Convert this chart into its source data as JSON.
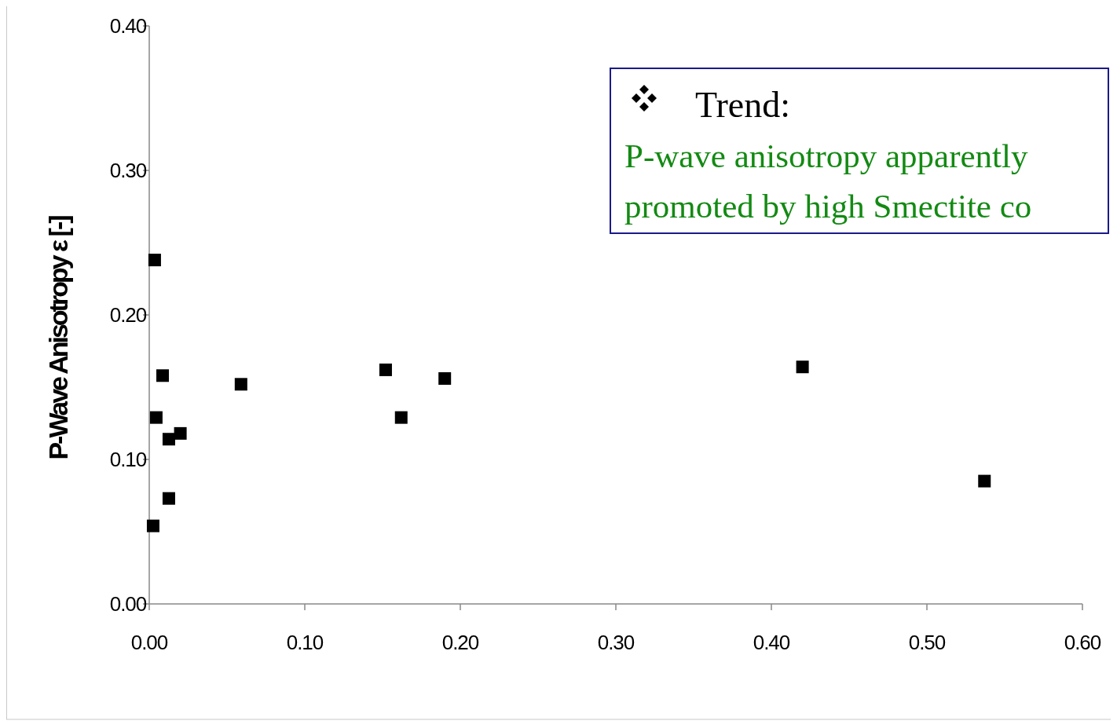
{
  "chart_data": {
    "type": "scatter",
    "ylabel": "P-Wave Anisotropy ε [-]",
    "annotations": [
      "Trend:",
      "P-wave anisotropy apparently",
      "promoted by high Smectite co"
    ],
    "xlim": [
      0,
      0.6
    ],
    "xticks": [
      {
        "value": 0,
        "label": "0.00"
      },
      {
        "value": 0.1,
        "label": "0.10"
      },
      {
        "value": 0.2,
        "label": "0.20"
      },
      {
        "value": 0.3,
        "label": "0.30"
      },
      {
        "value": 0.4,
        "label": "0.40"
      },
      {
        "value": 0.5,
        "label": "0.50"
      },
      {
        "value": 0.6,
        "label": "0.60"
      }
    ],
    "ylim": [
      0,
      0.4
    ],
    "yticks": [
      {
        "value": 0,
        "label": "0.00"
      },
      {
        "value": 0.1,
        "label": "0.10"
      },
      {
        "value": 0.2,
        "label": "0.20"
      },
      {
        "value": 0.3,
        "label": "0.30"
      },
      {
        "value": 0.4,
        "label": "0.40"
      }
    ],
    "marker": "square",
    "grid": false,
    "series": [
      {
        "color": "#000000",
        "x": [
          0.0035,
          0.0086,
          0.0045,
          0.02,
          0.0126,
          0.0126,
          0.0025,
          0.059,
          0.152,
          0.162,
          0.19,
          0.42,
          0.537
        ],
        "values": [
          0.238,
          0.158,
          0.129,
          0.118,
          0.114,
          0.073,
          0.054,
          0.152,
          0.162,
          0.129,
          0.156,
          0.164,
          0.085
        ]
      }
    ]
  }
}
